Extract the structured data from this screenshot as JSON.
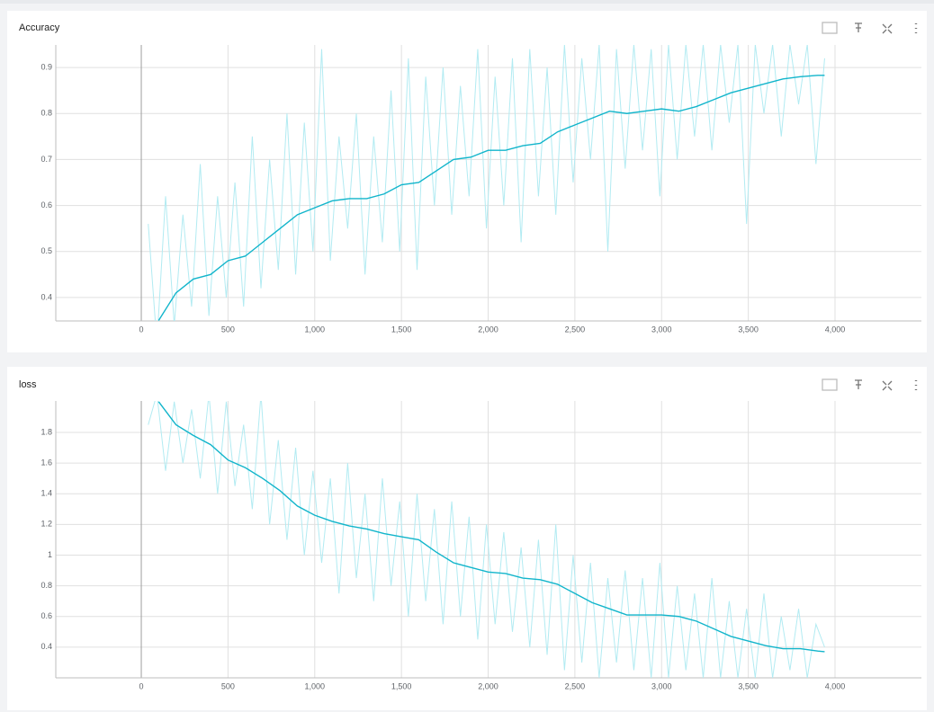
{
  "chart_data": [
    {
      "type": "line",
      "title": "Accuracy",
      "grid": true,
      "xlim": [
        -493,
        4498
      ],
      "ylim": [
        0.349,
        0.949
      ],
      "xticks": [
        {
          "value": 0,
          "label": "0"
        },
        {
          "value": 500,
          "label": "500"
        },
        {
          "value": 1000,
          "label": "1,000"
        },
        {
          "value": 1500,
          "label": "1,500"
        },
        {
          "value": 2000,
          "label": "2,000"
        },
        {
          "value": 2500,
          "label": "2,500"
        },
        {
          "value": 3000,
          "label": "3,000"
        },
        {
          "value": 3500,
          "label": "3,500"
        },
        {
          "value": 4000,
          "label": "4,000"
        }
      ],
      "yticks": [
        0.4,
        0.5,
        0.6,
        0.7,
        0.8,
        0.9
      ],
      "series": [
        {
          "color": "#b2ebf2",
          "x": [
            40,
            90,
            140,
            190,
            240,
            290,
            340,
            390,
            440,
            490,
            540,
            590,
            640,
            690,
            740,
            790,
            840,
            890,
            940,
            990,
            1040,
            1090,
            1140,
            1190,
            1240,
            1290,
            1340,
            1390,
            1440,
            1490,
            1540,
            1590,
            1640,
            1690,
            1740,
            1790,
            1840,
            1890,
            1940,
            1990,
            2040,
            2090,
            2140,
            2190,
            2240,
            2290,
            2340,
            2390,
            2440,
            2490,
            2540,
            2590,
            2640,
            2690,
            2740,
            2790,
            2840,
            2890,
            2940,
            2990,
            3040,
            3090,
            3140,
            3190,
            3240,
            3290,
            3340,
            3390,
            3440,
            3490,
            3540,
            3590,
            3640,
            3690,
            3740,
            3790,
            3840,
            3890,
            3940
          ],
          "values": [
            0.56,
            0.3,
            0.62,
            0.34,
            0.58,
            0.38,
            0.69,
            0.36,
            0.62,
            0.4,
            0.65,
            0.38,
            0.75,
            0.42,
            0.7,
            0.46,
            0.8,
            0.45,
            0.78,
            0.5,
            0.94,
            0.48,
            0.75,
            0.55,
            0.8,
            0.45,
            0.75,
            0.52,
            0.85,
            0.5,
            0.92,
            0.46,
            0.88,
            0.6,
            0.9,
            0.58,
            0.86,
            0.62,
            0.94,
            0.55,
            0.88,
            0.6,
            0.92,
            0.52,
            0.94,
            0.62,
            0.9,
            0.58,
            0.95,
            0.65,
            0.92,
            0.7,
            0.95,
            0.5,
            0.94,
            0.68,
            0.95,
            0.72,
            0.94,
            0.62,
            0.95,
            0.7,
            0.95,
            0.75,
            0.95,
            0.72,
            0.95,
            0.78,
            0.95,
            0.56,
            0.95,
            0.8,
            0.95,
            0.75,
            0.95,
            0.82,
            0.95,
            0.69,
            0.92
          ]
        },
        {
          "color": "#12b5cb",
          "x": [
            100,
            200,
            300,
            400,
            500,
            600,
            700,
            800,
            900,
            1000,
            1100,
            1200,
            1300,
            1400,
            1500,
            1600,
            1700,
            1800,
            1900,
            2000,
            2100,
            2200,
            2300,
            2400,
            2500,
            2600,
            2700,
            2800,
            2900,
            3000,
            3100,
            3200,
            3300,
            3400,
            3500,
            3600,
            3700,
            3800,
            3900,
            3940
          ],
          "values": [
            0.35,
            0.41,
            0.44,
            0.45,
            0.48,
            0.49,
            0.52,
            0.55,
            0.58,
            0.595,
            0.61,
            0.615,
            0.615,
            0.625,
            0.645,
            0.65,
            0.675,
            0.7,
            0.705,
            0.72,
            0.72,
            0.73,
            0.735,
            0.76,
            0.775,
            0.79,
            0.805,
            0.8,
            0.805,
            0.81,
            0.805,
            0.815,
            0.83,
            0.845,
            0.855,
            0.865,
            0.875,
            0.88,
            0.883,
            0.883
          ]
        }
      ]
    },
    {
      "type": "line",
      "title": "loss",
      "grid": true,
      "xlim": [
        -493,
        4498
      ],
      "ylim": [
        0.2,
        2.005
      ],
      "xticks": [
        {
          "value": 0,
          "label": "0"
        },
        {
          "value": 500,
          "label": "500"
        },
        {
          "value": 1000,
          "label": "1,000"
        },
        {
          "value": 1500,
          "label": "1,500"
        },
        {
          "value": 2000,
          "label": "2,000"
        },
        {
          "value": 2500,
          "label": "2,500"
        },
        {
          "value": 3000,
          "label": "3,000"
        },
        {
          "value": 3500,
          "label": "3,500"
        },
        {
          "value": 4000,
          "label": "4,000"
        }
      ],
      "yticks": [
        0.4,
        0.6,
        0.8,
        1,
        1.2,
        1.4,
        1.6,
        1.8
      ],
      "series": [
        {
          "color": "#b2ebf2",
          "x": [
            40,
            90,
            140,
            190,
            240,
            290,
            340,
            390,
            440,
            490,
            540,
            590,
            640,
            690,
            740,
            790,
            840,
            890,
            940,
            990,
            1040,
            1090,
            1140,
            1190,
            1240,
            1290,
            1340,
            1390,
            1440,
            1490,
            1540,
            1590,
            1640,
            1690,
            1740,
            1790,
            1840,
            1890,
            1940,
            1990,
            2040,
            2090,
            2140,
            2190,
            2240,
            2290,
            2340,
            2390,
            2440,
            2490,
            2540,
            2590,
            2640,
            2690,
            2740,
            2790,
            2840,
            2890,
            2940,
            2990,
            3040,
            3090,
            3140,
            3190,
            3240,
            3290,
            3340,
            3390,
            3440,
            3490,
            3540,
            3590,
            3640,
            3690,
            3740,
            3790,
            3840,
            3890,
            3940
          ],
          "values": [
            1.85,
            2.05,
            1.55,
            2.0,
            1.6,
            1.95,
            1.5,
            2.05,
            1.4,
            2.0,
            1.45,
            1.85,
            1.3,
            2.05,
            1.2,
            1.75,
            1.1,
            1.7,
            1.0,
            1.55,
            0.95,
            1.5,
            0.75,
            1.6,
            0.85,
            1.4,
            0.7,
            1.5,
            0.8,
            1.35,
            0.6,
            1.4,
            0.7,
            1.3,
            0.55,
            1.35,
            0.6,
            1.25,
            0.45,
            1.2,
            0.55,
            1.15,
            0.5,
            1.05,
            0.4,
            1.1,
            0.35,
            1.2,
            0.25,
            1.0,
            0.3,
            0.95,
            0.2,
            0.85,
            0.3,
            0.9,
            0.25,
            0.85,
            0.2,
            0.95,
            0.2,
            0.8,
            0.25,
            0.75,
            0.2,
            0.85,
            0.2,
            0.7,
            0.2,
            0.65,
            0.2,
            0.75,
            0.2,
            0.6,
            0.25,
            0.65,
            0.2,
            0.55,
            0.4
          ]
        },
        {
          "color": "#12b5cb",
          "x": [
            100,
            200,
            300,
            400,
            500,
            600,
            700,
            800,
            900,
            1000,
            1100,
            1200,
            1300,
            1400,
            1500,
            1600,
            1700,
            1800,
            1900,
            2000,
            2100,
            2200,
            2300,
            2400,
            2500,
            2600,
            2700,
            2800,
            2900,
            3000,
            3100,
            3200,
            3300,
            3400,
            3500,
            3600,
            3700,
            3800,
            3900,
            3940
          ],
          "values": [
            2.0,
            1.85,
            1.78,
            1.72,
            1.62,
            1.57,
            1.5,
            1.42,
            1.32,
            1.26,
            1.22,
            1.19,
            1.17,
            1.14,
            1.12,
            1.1,
            1.02,
            0.95,
            0.92,
            0.89,
            0.88,
            0.85,
            0.84,
            0.81,
            0.75,
            0.69,
            0.65,
            0.61,
            0.61,
            0.61,
            0.6,
            0.57,
            0.52,
            0.47,
            0.44,
            0.41,
            0.39,
            0.39,
            0.375,
            0.37
          ]
        }
      ]
    }
  ]
}
